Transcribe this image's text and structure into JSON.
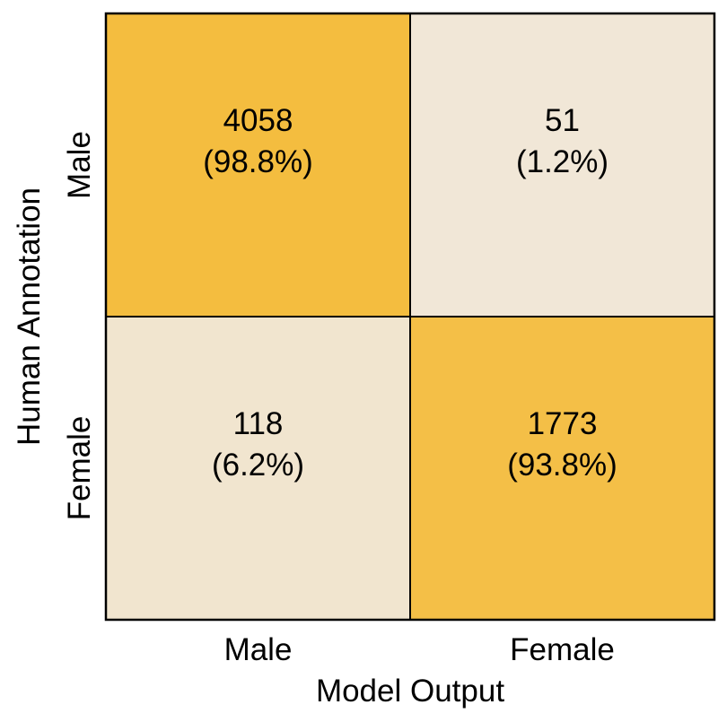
{
  "chart_data": {
    "type": "heatmap",
    "title": "",
    "xlabel": "Model Output",
    "ylabel": "Human Annotation",
    "x_categories": [
      "Male",
      "Female"
    ],
    "y_categories": [
      "Male",
      "Female"
    ],
    "cells": [
      [
        {
          "count": "4058",
          "percent_label": "(98.8%)",
          "percent": 98.8
        },
        {
          "count": "51",
          "percent_label": "(1.2%)",
          "percent": 1.2
        }
      ],
      [
        {
          "count": "118",
          "percent_label": "(6.2%)",
          "percent": 6.2
        },
        {
          "count": "1773",
          "percent_label": "(93.8%)",
          "percent": 93.8
        }
      ]
    ],
    "colors": {
      "low": "#f1e8d9",
      "high": "#f4bc3d",
      "border": "#000000"
    }
  }
}
